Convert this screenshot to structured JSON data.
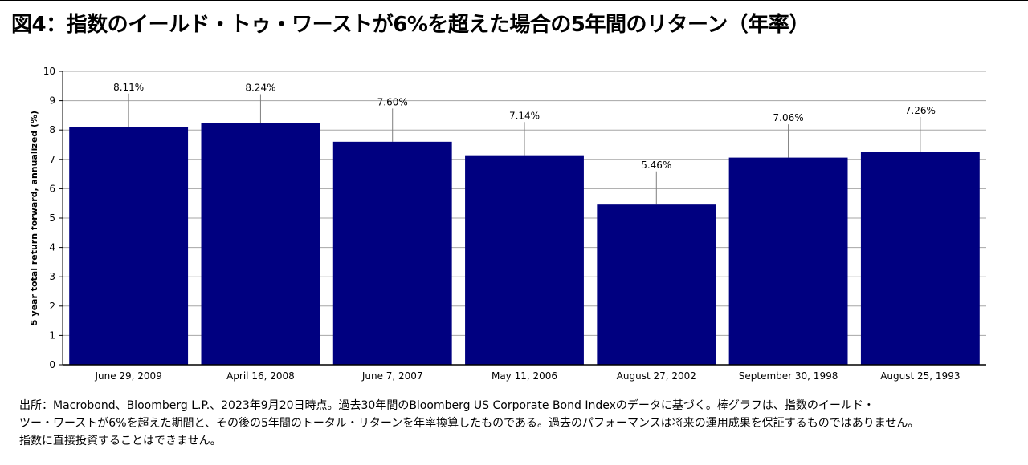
{
  "title": "図4：指数のイールド・トゥ・ワーストが6%を超えた場合の5年間のリターン（年率）",
  "chart_data": {
    "type": "bar",
    "title": "",
    "xlabel": "",
    "ylabel": "5 year total return forward, annualized (%)",
    "ylim": [
      0,
      10
    ],
    "yticks": [
      "0",
      "1",
      "2",
      "3",
      "4",
      "5",
      "6",
      "7",
      "8",
      "9",
      "10"
    ],
    "grid": true,
    "categories": [
      "June 29, 2009",
      "April 16, 2008",
      "June 7, 2007",
      "May 11, 2006",
      "August 27, 2002",
      "September 30, 1998",
      "August 25, 1993"
    ],
    "values": [
      8.11,
      8.24,
      7.6,
      7.14,
      5.46,
      7.06,
      7.26
    ],
    "data_labels": [
      "8.11%",
      "8.24%",
      "7.60%",
      "7.14%",
      "5.46%",
      "7.06%",
      "7.26%"
    ],
    "label_offsets": [
      1.35,
      1.2,
      1.35,
      1.35,
      1.35,
      1.35,
      1.4
    ],
    "bar_color": "#000080",
    "grid_color": "#a6a6a6",
    "leader_color": "#7f7f7f"
  },
  "footnote": {
    "line1": "出所：Macrobond、Bloomberg L.P.、2023年9月20日時点。過去30年間のBloomberg US Corporate Bond Indexのデータに基づく。棒グラフは、指数のイールド・",
    "line2": "ツー・ワーストが6%を超えた期間と、その後の5年間のトータル・リターンを年率換算したものである。過去のパフォーマンスは将来の運用成果を保証するものではありません。",
    "line3": "指数に直接投資することはできません。"
  }
}
